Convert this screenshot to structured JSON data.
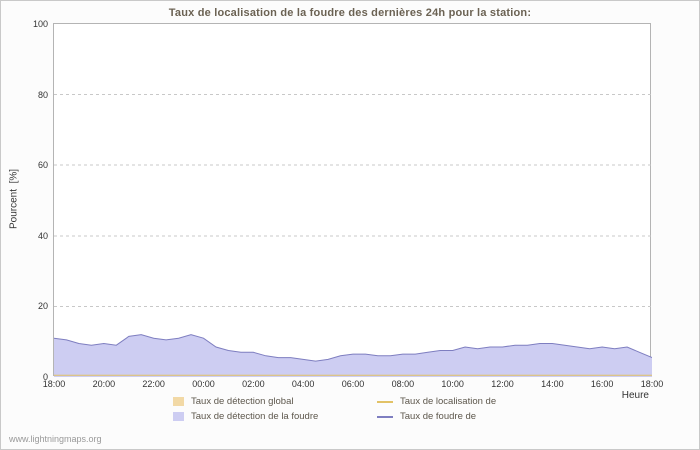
{
  "page": {
    "watermark": "www.lightningmaps.org"
  },
  "chart_data": {
    "type": "area",
    "title": "Taux de localisation de la foudre des dernières 24h pour la station:",
    "xlabel": "Heure",
    "ylabel": "Pourcent  [%]",
    "ylim": [
      0,
      100
    ],
    "yticks": [
      0,
      20,
      40,
      60,
      80,
      100
    ],
    "grid": true,
    "legend_position": "bottom",
    "xtick_labels": [
      "18:00",
      "20:00",
      "22:00",
      "00:00",
      "02:00",
      "04:00",
      "06:00",
      "08:00",
      "10:00",
      "12:00",
      "14:00",
      "16:00",
      "18:00"
    ],
    "x": [
      "18:00",
      "18:30",
      "19:00",
      "19:30",
      "20:00",
      "20:30",
      "21:00",
      "21:30",
      "22:00",
      "22:30",
      "23:00",
      "23:30",
      "00:00",
      "00:30",
      "01:00",
      "01:30",
      "02:00",
      "02:30",
      "03:00",
      "03:30",
      "04:00",
      "04:30",
      "05:00",
      "05:30",
      "06:00",
      "06:30",
      "07:00",
      "07:30",
      "08:00",
      "08:30",
      "09:00",
      "09:30",
      "10:00",
      "10:30",
      "11:00",
      "11:30",
      "12:00",
      "12:30",
      "13:00",
      "13:30",
      "14:00",
      "14:30",
      "15:00",
      "15:30",
      "16:00",
      "16:30",
      "17:00",
      "17:30",
      "18:00"
    ],
    "series": [
      {
        "name": "Taux de détection global",
        "type": "area",
        "color": "#f2d9a6",
        "values": 0.6
      },
      {
        "name": "Taux de détection de la foudre",
        "type": "area",
        "color": "#cdcdf2",
        "values": [
          11,
          10.5,
          9.5,
          9,
          9.5,
          9,
          11.5,
          12,
          11,
          10.5,
          11,
          12,
          11,
          8.5,
          7.5,
          7,
          7,
          6,
          5.5,
          5.5,
          5,
          4.5,
          5,
          6,
          6.5,
          6.5,
          6,
          6,
          6.5,
          6.5,
          7,
          7.5,
          7.5,
          8.5,
          8,
          8.5,
          8.5,
          9,
          9,
          9.5,
          9.5,
          9,
          8.5,
          8,
          8.5,
          8,
          8.5,
          7,
          5.5
        ]
      },
      {
        "name": "Taux de localisation de",
        "type": "line",
        "color": "#e2c266",
        "values": 0.5
      },
      {
        "name": "Taux de foudre de",
        "type": "line",
        "color": "#7e7ec0",
        "values": [
          11,
          10.5,
          9.5,
          9,
          9.5,
          9,
          11.5,
          12,
          11,
          10.5,
          11,
          12,
          11,
          8.5,
          7.5,
          7,
          7,
          6,
          5.5,
          5.5,
          5,
          4.5,
          5,
          6,
          6.5,
          6.5,
          6,
          6,
          6.5,
          6.5,
          7,
          7.5,
          7.5,
          8.5,
          8,
          8.5,
          8.5,
          9,
          9,
          9.5,
          9.5,
          9,
          8.5,
          8,
          8.5,
          8,
          8.5,
          7,
          5.5
        ]
      }
    ]
  }
}
